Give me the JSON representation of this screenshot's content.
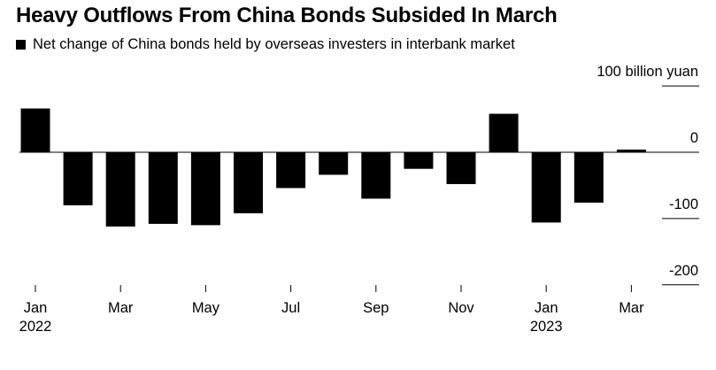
{
  "title": "Heavy Outflows From China Bonds Subsided In March",
  "legend": {
    "label": "Net change of China bonds held by overseas investers in interbank market",
    "color": "#000000"
  },
  "chart_data": {
    "type": "bar",
    "title": "Heavy Outflows From China Bonds Subsided In March",
    "series": [
      {
        "name": "Net change of China bonds held by overseas investers in interbank market",
        "color": "#000000",
        "values": [
          66,
          -80,
          -112,
          -108,
          -110,
          -92,
          -54,
          -34,
          -70,
          -25,
          -48,
          58,
          -106,
          -76,
          4
        ]
      }
    ],
    "categories": [
      "Jan 2022",
      "Feb 2022",
      "Mar 2022",
      "Apr 2022",
      "May 2022",
      "Jun 2022",
      "Jul 2022",
      "Aug 2022",
      "Sep 2022",
      "Oct 2022",
      "Nov 2022",
      "Dec 2022",
      "Jan 2023",
      "Feb 2023",
      "Mar 2023"
    ],
    "x_tick_labels": [
      {
        "index": 0,
        "label": "Jan",
        "year": "2022"
      },
      {
        "index": 2,
        "label": "Mar",
        "year": ""
      },
      {
        "index": 4,
        "label": "May",
        "year": ""
      },
      {
        "index": 6,
        "label": "Jul",
        "year": ""
      },
      {
        "index": 8,
        "label": "Sep",
        "year": ""
      },
      {
        "index": 10,
        "label": "Nov",
        "year": ""
      },
      {
        "index": 12,
        "label": "Jan",
        "year": "2023"
      },
      {
        "index": 14,
        "label": "Mar",
        "year": ""
      }
    ],
    "y_ticks": [
      {
        "value": 100,
        "label": "100 billion yuan"
      },
      {
        "value": 0,
        "label": "0"
      },
      {
        "value": -100,
        "label": "-100"
      },
      {
        "value": -200,
        "label": "-200"
      }
    ],
    "ylim": [
      -200,
      100
    ],
    "grid": false,
    "legend_position": "top-left"
  }
}
